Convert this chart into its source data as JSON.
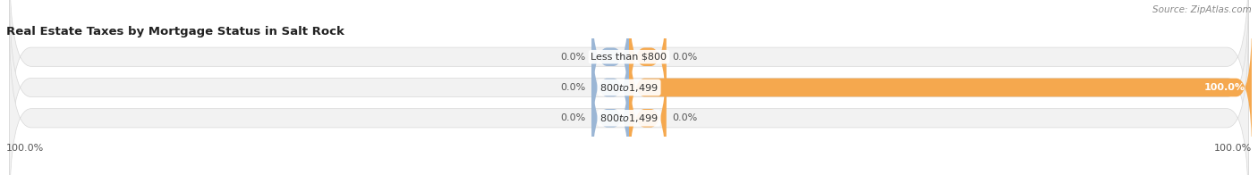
{
  "title": "Real Estate Taxes by Mortgage Status in Salt Rock",
  "source": "Source: ZipAtlas.com",
  "categories": [
    "Less than $800",
    "$800 to $1,499",
    "$800 to $1,499"
  ],
  "without_mortgage": [
    0.0,
    0.0,
    0.0
  ],
  "with_mortgage": [
    0.0,
    100.0,
    0.0
  ],
  "color_without": "#9bb6d5",
  "color_with": "#f5a84e",
  "bar_bg_color": "#f2f2f2",
  "bar_border_color": "#d8d8d8",
  "bar_bg_color2": "#e8e8e8",
  "xlim_left": -100,
  "xlim_right": 100,
  "bottom_left_label": "100.0%",
  "bottom_right_label": "100.0%",
  "title_fontsize": 9.5,
  "source_fontsize": 7.5,
  "label_fontsize": 8,
  "cat_fontsize": 8,
  "zero_bar_width": 6,
  "bar_height": 0.62
}
